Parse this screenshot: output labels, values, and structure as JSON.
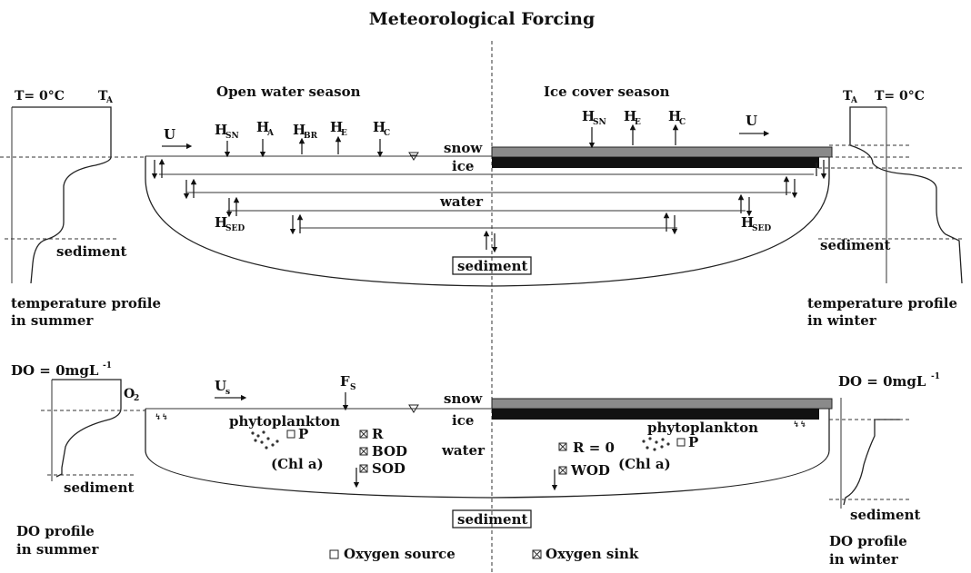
{
  "title": "Meteorological Forcing",
  "top": {
    "open_season": "Open water season",
    "ice_season": "Ice cover season",
    "layers": {
      "snow": "snow",
      "ice": "ice",
      "water": "water",
      "sediment": "sediment"
    },
    "wind": "U",
    "fluxes_open": [
      {
        "main": "H",
        "sub": "SN"
      },
      {
        "main": "H",
        "sub": "A"
      },
      {
        "main": "H",
        "sub": "BR"
      },
      {
        "main": "H",
        "sub": "E"
      },
      {
        "main": "H",
        "sub": "C"
      }
    ],
    "fluxes_ice": [
      {
        "main": "H",
        "sub": "SN"
      },
      {
        "main": "H",
        "sub": "E"
      },
      {
        "main": "H",
        "sub": "C"
      }
    ],
    "h_sed": {
      "main": "H",
      "sub": "SED"
    },
    "left_profile": {
      "t0": "T= 0°C",
      "ta_main": "T",
      "ta_sub": "A",
      "sediment": "sediment",
      "caption_1": "temperature profile",
      "caption_2": "in summer"
    },
    "right_profile": {
      "ta_main": "T",
      "ta_sub": "A",
      "t0": "T= 0°C",
      "sediment": "sediment",
      "caption_1": "temperature profile",
      "caption_2": "in winter"
    }
  },
  "bottom": {
    "layers": {
      "snow": "snow",
      "ice": "ice",
      "water": "water",
      "sediment": "sediment"
    },
    "wind": {
      "main": "U",
      "sub": "s"
    },
    "flux": {
      "main": "F",
      "sub": "S"
    },
    "left_terms": {
      "phytoplankton": "phytoplankton",
      "p": "P",
      "chl": "(Chl a)",
      "r": "R",
      "bod": "BOD",
      "sod": "SOD"
    },
    "right_terms": {
      "phytoplankton": "phytoplankton",
      "p": "P",
      "r0": "R = 0",
      "chl": "(Chl a)",
      "wod": "WOD"
    },
    "left_profile": {
      "do0": "DO = 0mgL",
      "do0_sup": "-1",
      "o2_main": "O",
      "o2_sub": "2",
      "sediment": "sediment",
      "caption_1": "DO profile",
      "caption_2": "in summer"
    },
    "right_profile": {
      "do0": "DO = 0mgL",
      "do0_sup": "-1",
      "sediment": "sediment",
      "caption_1": "DO profile",
      "caption_2": "in winter"
    },
    "legend": {
      "source": "Oxygen source",
      "sink": "Oxygen sink"
    }
  }
}
